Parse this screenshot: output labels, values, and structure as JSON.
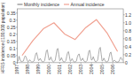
{
  "chart_data": {
    "type": "line",
    "ylabel": "HFRS incidence (/100,000 population)",
    "categories": [
      "1997",
      null,
      null,
      null,
      null,
      null,
      null,
      null,
      null,
      null,
      null,
      null,
      "1998",
      null,
      null,
      null,
      null,
      null,
      null,
      null,
      null,
      null,
      null,
      null,
      "1999",
      null,
      null,
      null,
      null,
      null,
      null,
      null,
      null,
      null,
      null,
      null,
      "2000",
      null,
      null,
      null,
      null,
      null,
      null,
      null,
      null,
      null,
      null,
      null,
      "2001",
      null,
      null,
      null,
      null,
      null,
      null,
      null,
      null,
      null,
      null,
      null,
      "2002",
      null,
      null,
      null,
      null,
      null,
      null,
      null,
      null,
      null,
      null,
      null,
      "2003",
      null,
      null,
      null,
      null,
      null,
      null,
      null,
      null,
      null,
      null,
      null,
      "2004",
      null,
      null,
      null,
      null,
      null,
      null,
      null,
      null,
      null,
      null,
      null,
      "2005",
      null,
      null,
      null,
      null,
      null,
      null,
      null,
      null,
      null,
      null,
      null,
      "2006",
      null,
      null,
      null,
      null,
      null,
      null,
      null,
      null,
      null,
      null,
      null
    ],
    "series": [
      {
        "name": "Monthly incidence",
        "color": "#888888",
        "values": [
          0.01,
          0.012,
          0.045,
          0.025,
          0.01,
          0.008,
          0.01,
          0.012,
          0.035,
          0.048,
          0.04,
          0.018,
          0.008,
          0.01,
          0.02,
          0.012,
          0.006,
          0.005,
          0.008,
          0.012,
          0.038,
          0.065,
          0.07,
          0.04,
          0.015,
          0.018,
          0.03,
          0.018,
          0.008,
          0.005,
          0.008,
          0.015,
          0.05,
          0.085,
          0.09,
          0.05,
          0.018,
          0.022,
          0.04,
          0.022,
          0.01,
          0.005,
          0.01,
          0.018,
          0.055,
          0.095,
          0.1,
          0.058,
          0.014,
          0.018,
          0.035,
          0.02,
          0.008,
          0.005,
          0.008,
          0.015,
          0.045,
          0.072,
          0.078,
          0.045,
          0.01,
          0.014,
          0.028,
          0.016,
          0.007,
          0.004,
          0.007,
          0.012,
          0.04,
          0.055,
          0.062,
          0.035,
          0.014,
          0.018,
          0.032,
          0.018,
          0.008,
          0.005,
          0.008,
          0.015,
          0.048,
          0.082,
          0.088,
          0.048,
          0.018,
          0.022,
          0.042,
          0.024,
          0.01,
          0.005,
          0.01,
          0.018,
          0.058,
          0.1,
          0.108,
          0.06,
          0.012,
          0.015,
          0.032,
          0.018,
          0.008,
          0.004,
          0.008,
          0.012,
          0.04,
          0.068,
          0.075,
          0.042,
          0.008,
          0.01,
          0.018,
          0.012,
          0.005,
          0.003,
          0.005,
          0.008,
          0.022,
          0.038,
          0.032,
          0.015
        ]
      },
      {
        "name": "Annual incidence",
        "color": "#f0a090",
        "axis": "y2",
        "x": [
          "1997",
          "1998",
          "1999",
          "2000",
          "2001",
          "2002",
          "2003",
          "2004",
          "2005",
          "2006"
        ],
        "values": [
          0.18,
          0.55,
          0.85,
          1.0,
          0.72,
          0.58,
          0.88,
          1.08,
          0.75,
          0.28
        ]
      }
    ],
    "ylim": [
      0,
      0.38
    ],
    "yticks": [
      0,
      0.05,
      0.1,
      0.15,
      0.2,
      0.25,
      0.3,
      0.35
    ],
    "y2lim": [
      0,
      1.35
    ],
    "y2ticks": [
      0,
      0.2,
      0.4,
      0.6,
      0.8,
      {
        "value": 1.0,
        "label": "1.0"
      },
      1.2
    ],
    "grid": false,
    "legend": "upper left"
  }
}
